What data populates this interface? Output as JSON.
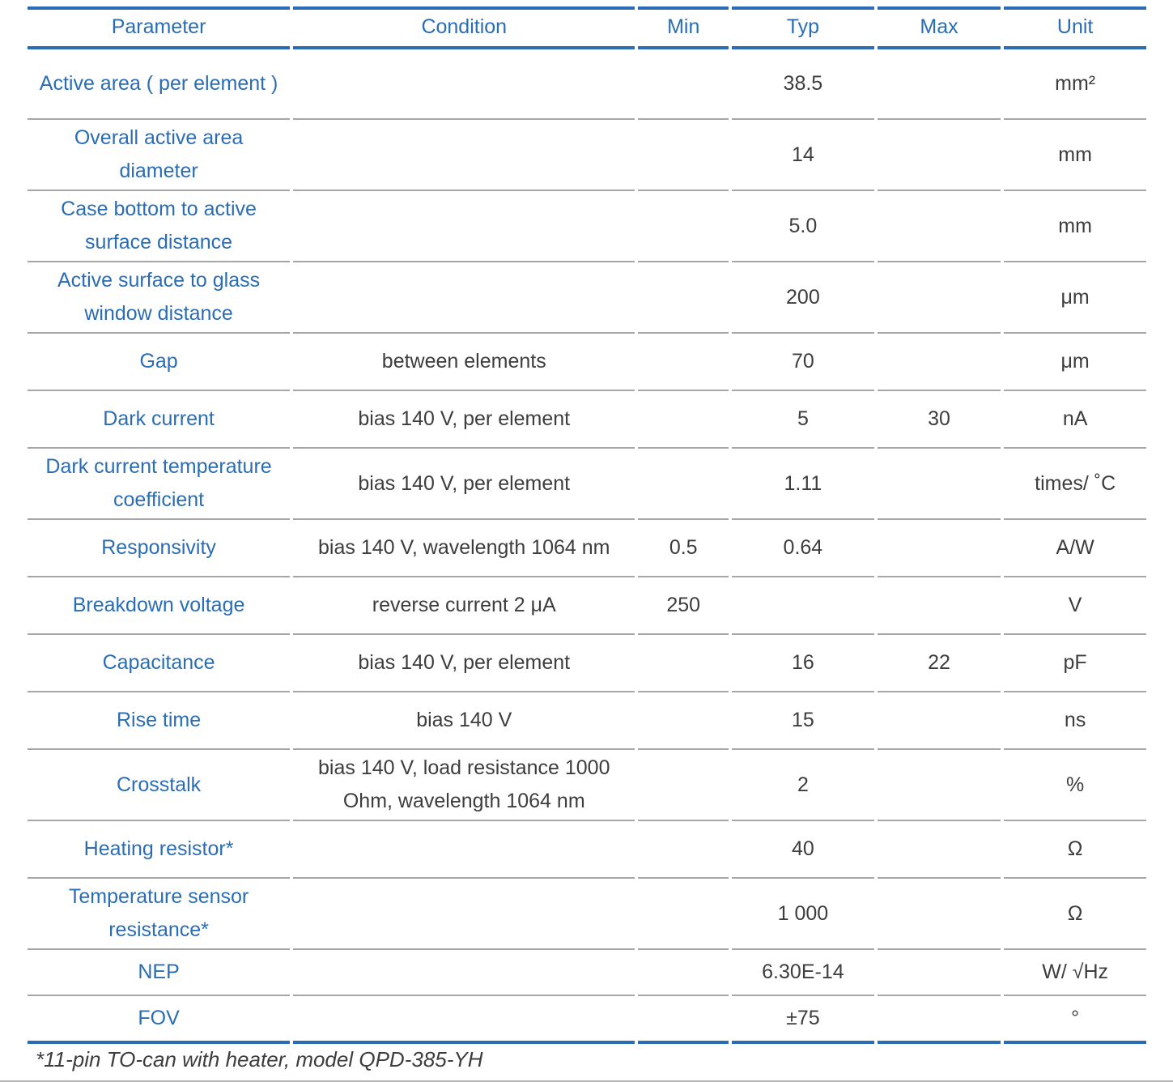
{
  "colors": {
    "accent_blue": "#2a6db5",
    "divider_gray": "#a6a6a6",
    "text_dark": "#3d3d3d"
  },
  "table": {
    "columns": [
      {
        "key": "parameter",
        "label": "Parameter"
      },
      {
        "key": "condition",
        "label": "Condition"
      },
      {
        "key": "min",
        "label": "Min"
      },
      {
        "key": "typ",
        "label": "Typ"
      },
      {
        "key": "max",
        "label": "Max"
      },
      {
        "key": "unit",
        "label": "Unit"
      }
    ],
    "rows": [
      {
        "parameter": "Active area ( per element )",
        "condition": "",
        "min": "",
        "typ": "38.5",
        "max": "",
        "unit": "mm²"
      },
      {
        "parameter": "Overall active area diameter",
        "condition": "",
        "min": "",
        "typ": "14",
        "max": "",
        "unit": "mm"
      },
      {
        "parameter": "Case bottom to active surface distance",
        "condition": "",
        "min": "",
        "typ": "5.0",
        "max": "",
        "unit": "mm"
      },
      {
        "parameter": "Active surface to glass window distance",
        "condition": "",
        "min": "",
        "typ": "200",
        "max": "",
        "unit": "μm"
      },
      {
        "parameter": "Gap",
        "condition": "between elements",
        "min": "",
        "typ": "70",
        "max": "",
        "unit": "μm"
      },
      {
        "parameter": "Dark current",
        "condition": "bias 140 V, per element",
        "min": "",
        "typ": "5",
        "max": "30",
        "unit": "nA"
      },
      {
        "parameter": "Dark current temperature coefficient",
        "condition": "bias 140 V, per element",
        "min": "",
        "typ": "1.11",
        "max": "",
        "unit": "times/ ˚C"
      },
      {
        "parameter": "Responsivity",
        "condition": "bias 140 V, wavelength 1064 nm",
        "min": "0.5",
        "typ": "0.64",
        "max": "",
        "unit": "A/W"
      },
      {
        "parameter": "Breakdown voltage",
        "condition": "reverse current 2 μA",
        "min": "250",
        "typ": "",
        "max": "",
        "unit": "V"
      },
      {
        "parameter": "Capacitance",
        "condition": "bias 140 V, per element",
        "min": "",
        "typ": "16",
        "max": "22",
        "unit": "pF"
      },
      {
        "parameter": "Rise time",
        "condition": "bias 140 V",
        "min": "",
        "typ": "15",
        "max": "",
        "unit": "ns"
      },
      {
        "parameter": "Crosstalk",
        "condition": "bias 140 V, load resistance 1000 Ohm, wavelength 1064 nm",
        "min": "",
        "typ": "2",
        "max": "",
        "unit": "%"
      },
      {
        "parameter": "Heating resistor*",
        "condition": "",
        "min": "",
        "typ": "40",
        "max": "",
        "unit": "Ω"
      },
      {
        "parameter": "Temperature sensor resistance*",
        "condition": "",
        "min": "",
        "typ": "1 000",
        "max": "",
        "unit": "Ω"
      },
      {
        "parameter": "NEP",
        "condition": "",
        "min": "",
        "typ": "6.30E-14",
        "max": "",
        "unit": "W/ √Hz"
      },
      {
        "parameter": "FOV",
        "condition": "",
        "min": "",
        "typ": "±75",
        "max": "",
        "unit": "°"
      }
    ]
  },
  "footnote": "*11-pin TO-can with heater, model QPD-385-YH"
}
